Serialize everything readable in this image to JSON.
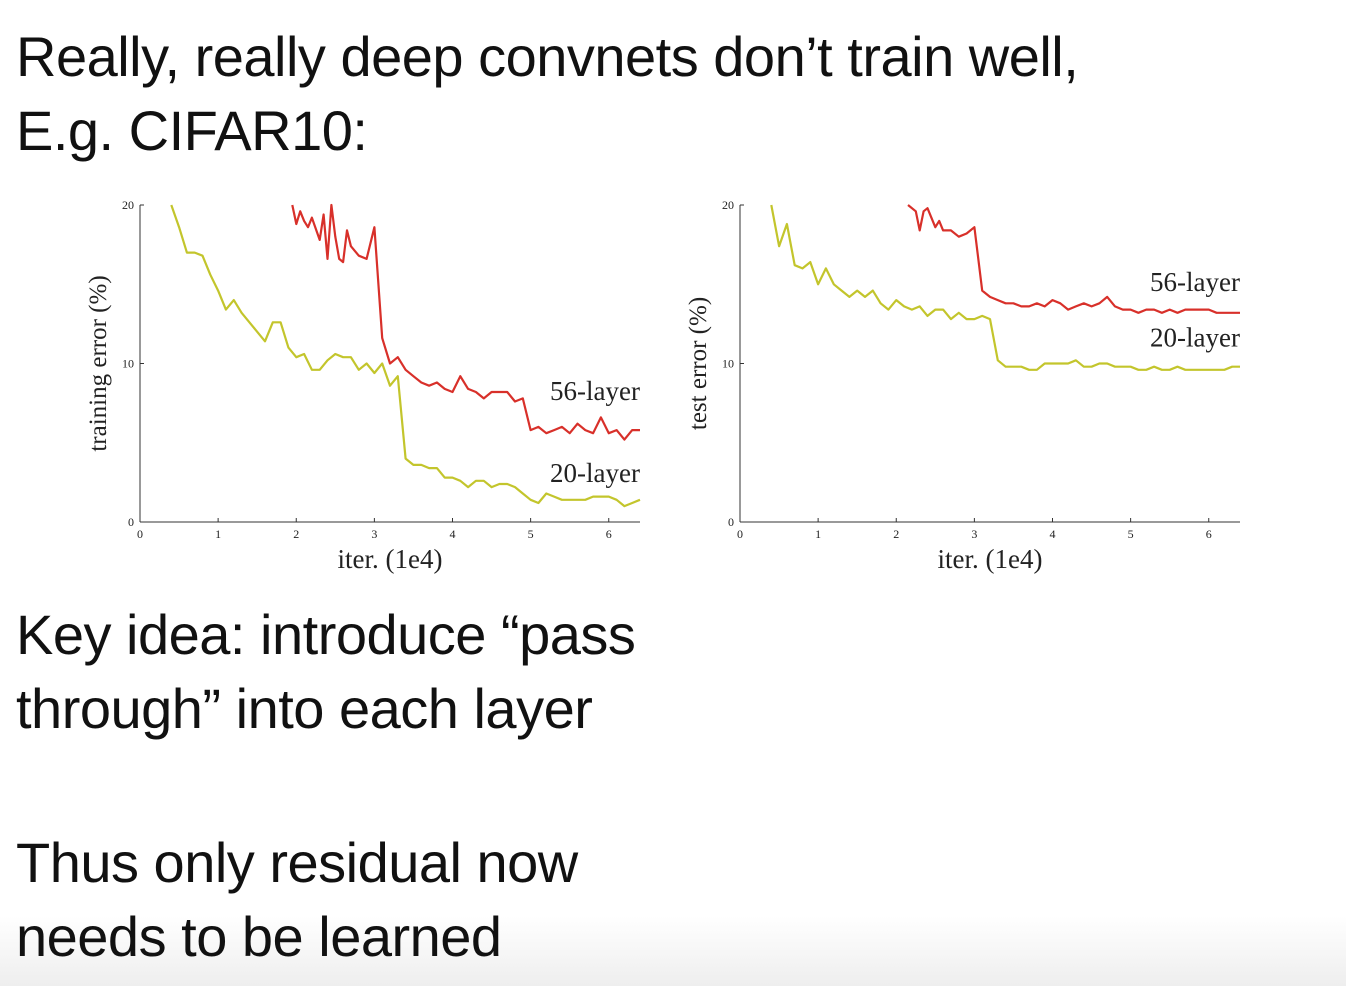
{
  "slide": {
    "title_line1": "Really, really deep convnets don’t train well,",
    "title_line2": "E.g. CIFAR10:",
    "key_idea_line1": "Key idea: introduce “pass",
    "key_idea_line2": "through” into each layer",
    "residual_line1": "Thus only residual now",
    "residual_line2": "needs to be learned"
  },
  "colors": {
    "series_56": "#d8302a",
    "series_20": "#c3c52c",
    "axis": "#333333"
  },
  "chart_data": [
    {
      "type": "line",
      "title": "",
      "xlabel": "iter. (1e4)",
      "ylabel": "training error (%)",
      "xlim": [
        0,
        6.4
      ],
      "ylim": [
        0,
        20
      ],
      "xticks": [
        "0",
        "1",
        "2",
        "3",
        "4",
        "5",
        "6"
      ],
      "yticks": [
        "0",
        "10",
        "20"
      ],
      "grid": false,
      "series": [
        {
          "name": "56-layer",
          "x": [
            1.95,
            2.0,
            2.05,
            2.1,
            2.15,
            2.2,
            2.3,
            2.35,
            2.4,
            2.45,
            2.5,
            2.55,
            2.6,
            2.65,
            2.7,
            2.8,
            2.9,
            3.0,
            3.1,
            3.2,
            3.3,
            3.4,
            3.5,
            3.6,
            3.7,
            3.8,
            3.9,
            4.0,
            4.1,
            4.2,
            4.3,
            4.4,
            4.5,
            4.6,
            4.7,
            4.8,
            4.9,
            5.0,
            5.1,
            5.2,
            5.3,
            5.4,
            5.5,
            5.6,
            5.7,
            5.8,
            5.9,
            6.0,
            6.1,
            6.2,
            6.3,
            6.4
          ],
          "y": [
            20.0,
            18.8,
            19.6,
            19.0,
            18.6,
            19.2,
            17.8,
            19.4,
            16.6,
            20.0,
            18.0,
            16.6,
            16.4,
            18.4,
            17.4,
            16.8,
            16.6,
            18.6,
            11.6,
            10.0,
            10.4,
            9.6,
            9.2,
            8.8,
            8.6,
            8.8,
            8.4,
            8.2,
            9.2,
            8.4,
            8.2,
            7.8,
            8.2,
            8.2,
            8.2,
            7.6,
            7.8,
            5.8,
            6.0,
            5.6,
            5.8,
            6.0,
            5.6,
            6.2,
            5.8,
            5.6,
            6.6,
            5.6,
            5.8,
            5.2,
            5.8,
            5.8
          ]
        },
        {
          "name": "20-layer",
          "x": [
            0.4,
            0.5,
            0.6,
            0.7,
            0.8,
            0.9,
            1.0,
            1.1,
            1.2,
            1.3,
            1.4,
            1.5,
            1.6,
            1.7,
            1.8,
            1.9,
            2.0,
            2.1,
            2.2,
            2.3,
            2.4,
            2.5,
            2.6,
            2.7,
            2.8,
            2.9,
            3.0,
            3.1,
            3.2,
            3.3,
            3.4,
            3.5,
            3.6,
            3.7,
            3.8,
            3.9,
            4.0,
            4.1,
            4.2,
            4.3,
            4.4,
            4.5,
            4.6,
            4.7,
            4.8,
            4.9,
            5.0,
            5.1,
            5.2,
            5.3,
            5.4,
            5.5,
            5.6,
            5.7,
            5.8,
            5.9,
            6.0,
            6.1,
            6.2,
            6.3,
            6.4
          ],
          "y": [
            20.0,
            18.6,
            17.0,
            17.0,
            16.8,
            15.6,
            14.6,
            13.4,
            14.0,
            13.2,
            12.6,
            12.0,
            11.4,
            12.6,
            12.6,
            11.0,
            10.4,
            10.6,
            9.6,
            9.6,
            10.2,
            10.6,
            10.4,
            10.4,
            9.6,
            10.0,
            9.4,
            10.0,
            8.6,
            9.2,
            4.0,
            3.6,
            3.6,
            3.4,
            3.4,
            2.8,
            2.8,
            2.6,
            2.2,
            2.6,
            2.6,
            2.2,
            2.4,
            2.4,
            2.2,
            1.8,
            1.4,
            1.2,
            1.8,
            1.6,
            1.4,
            1.4,
            1.4,
            1.4,
            1.6,
            1.6,
            1.6,
            1.4,
            1.0,
            1.2,
            1.4
          ]
        }
      ]
    },
    {
      "type": "line",
      "title": "",
      "xlabel": "iter. (1e4)",
      "ylabel": "test error (%)",
      "xlim": [
        0,
        6.4
      ],
      "ylim": [
        0,
        20
      ],
      "xticks": [
        "0",
        "1",
        "2",
        "3",
        "4",
        "5",
        "6"
      ],
      "yticks": [
        "0",
        "10",
        "20"
      ],
      "grid": false,
      "series": [
        {
          "name": "56-layer",
          "x": [
            2.15,
            2.25,
            2.3,
            2.35,
            2.4,
            2.5,
            2.55,
            2.6,
            2.7,
            2.8,
            2.9,
            3.0,
            3.1,
            3.2,
            3.3,
            3.4,
            3.5,
            3.6,
            3.7,
            3.8,
            3.9,
            4.0,
            4.1,
            4.2,
            4.3,
            4.4,
            4.5,
            4.6,
            4.7,
            4.8,
            4.9,
            5.0,
            5.1,
            5.2,
            5.3,
            5.4,
            5.5,
            5.6,
            5.7,
            5.8,
            5.9,
            6.0,
            6.1,
            6.2,
            6.3,
            6.4
          ],
          "y": [
            20.0,
            19.6,
            18.4,
            19.6,
            19.8,
            18.6,
            19.0,
            18.4,
            18.4,
            18.0,
            18.2,
            18.6,
            14.6,
            14.2,
            14.0,
            13.8,
            13.8,
            13.6,
            13.6,
            13.8,
            13.6,
            14.0,
            13.8,
            13.4,
            13.6,
            13.8,
            13.6,
            13.8,
            14.2,
            13.6,
            13.4,
            13.4,
            13.2,
            13.4,
            13.4,
            13.2,
            13.4,
            13.2,
            13.4,
            13.4,
            13.4,
            13.4,
            13.2,
            13.2,
            13.2,
            13.2
          ]
        },
        {
          "name": "20-layer",
          "x": [
            0.4,
            0.5,
            0.6,
            0.7,
            0.8,
            0.9,
            1.0,
            1.1,
            1.2,
            1.3,
            1.4,
            1.5,
            1.6,
            1.7,
            1.8,
            1.9,
            2.0,
            2.1,
            2.2,
            2.3,
            2.4,
            2.5,
            2.6,
            2.7,
            2.8,
            2.9,
            3.0,
            3.1,
            3.2,
            3.3,
            3.4,
            3.5,
            3.6,
            3.7,
            3.8,
            3.9,
            4.0,
            4.1,
            4.2,
            4.3,
            4.4,
            4.5,
            4.6,
            4.7,
            4.8,
            4.9,
            5.0,
            5.1,
            5.2,
            5.3,
            5.4,
            5.5,
            5.6,
            5.7,
            5.8,
            5.9,
            6.0,
            6.1,
            6.2,
            6.3,
            6.4
          ],
          "y": [
            20.0,
            17.4,
            18.8,
            16.2,
            16.0,
            16.4,
            15.0,
            16.0,
            15.0,
            14.6,
            14.2,
            14.6,
            14.2,
            14.6,
            13.8,
            13.4,
            14.0,
            13.6,
            13.4,
            13.6,
            13.0,
            13.4,
            13.4,
            12.8,
            13.2,
            12.8,
            12.8,
            13.0,
            12.8,
            10.2,
            9.8,
            9.8,
            9.8,
            9.6,
            9.6,
            10.0,
            10.0,
            10.0,
            10.0,
            10.2,
            9.8,
            9.8,
            10.0,
            10.0,
            9.8,
            9.8,
            9.8,
            9.6,
            9.6,
            9.8,
            9.6,
            9.6,
            9.8,
            9.6,
            9.6,
            9.6,
            9.6,
            9.6,
            9.6,
            9.8,
            9.8
          ]
        }
      ]
    }
  ]
}
